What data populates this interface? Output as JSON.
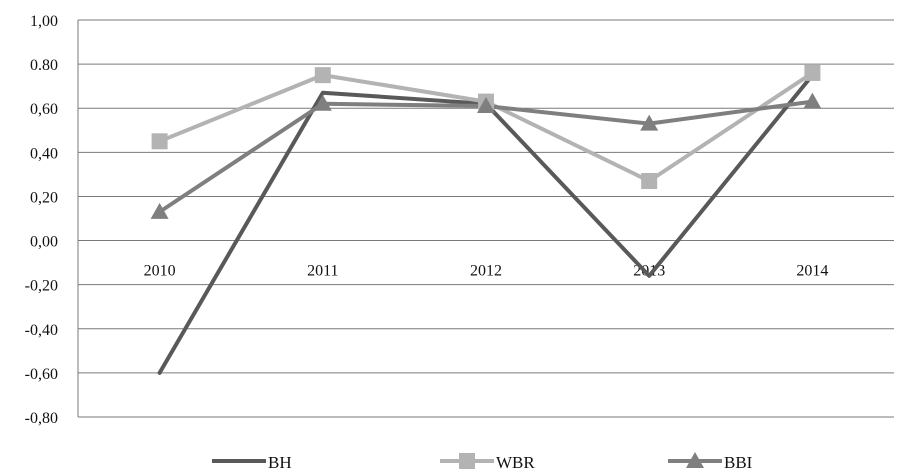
{
  "chart_data": {
    "type": "line",
    "categories": [
      "2010",
      "2011",
      "2012",
      "2013",
      "2014"
    ],
    "ylim": [
      -0.8,
      1.0
    ],
    "yticks": [
      "1,00",
      "0.80",
      "0,60",
      "0,40",
      "0,20",
      "0,00",
      "-0,20",
      "-0,40",
      "-0,60",
      "-0,80"
    ],
    "grid": true,
    "legend_position": "bottom",
    "series": [
      {
        "name": "BH",
        "values": [
          -0.6,
          0.67,
          0.62,
          -0.16,
          0.75
        ],
        "color": "#595959",
        "marker": "none"
      },
      {
        "name": "WBR",
        "values": [
          0.45,
          0.75,
          0.63,
          0.27,
          0.76
        ],
        "color": "#b3b3b3",
        "marker": "square"
      },
      {
        "name": "BBI",
        "values": [
          0.13,
          0.62,
          0.61,
          0.53,
          0.63
        ],
        "color": "#7f7f7f",
        "marker": "triangle"
      }
    ]
  }
}
